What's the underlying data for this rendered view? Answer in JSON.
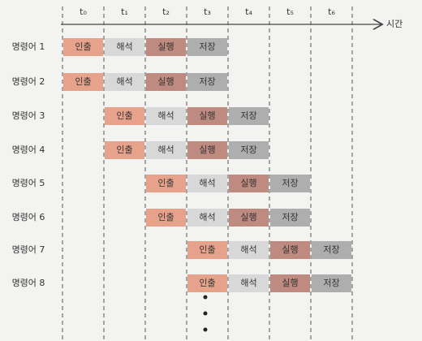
{
  "time_axis": {
    "label": "시간",
    "ticks": [
      "t₀",
      "t₁",
      "t₂",
      "t₃",
      "t₄",
      "t₅",
      "t₆"
    ]
  },
  "instructions": [
    {
      "label": "명령어 1",
      "stages": [
        "인출",
        "해석",
        "실행",
        "저장"
      ]
    },
    {
      "label": "명령어 2",
      "stages": [
        "인출",
        "해석",
        "실행",
        "저장"
      ]
    },
    {
      "label": "명령어 3",
      "stages": [
        "인출",
        "해석",
        "실행",
        "저장"
      ]
    },
    {
      "label": "명령어 4",
      "stages": [
        "인출",
        "해석",
        "실행",
        "저장"
      ]
    },
    {
      "label": "명령어 5",
      "stages": [
        "인출",
        "해석",
        "실행",
        "저장"
      ]
    },
    {
      "label": "명령어 6",
      "stages": [
        "인출",
        "해석",
        "실행",
        "저장"
      ]
    },
    {
      "label": "명령어 7",
      "stages": [
        "인출",
        "해석",
        "실행",
        "저장"
      ]
    },
    {
      "label": "명령어 8",
      "stages": [
        "인출",
        "해석",
        "실행",
        "저장"
      ]
    }
  ]
}
